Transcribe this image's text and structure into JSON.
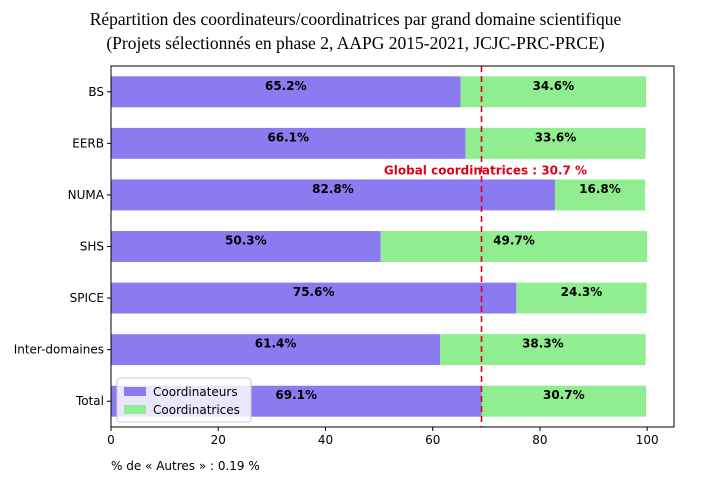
{
  "chart_data": {
    "type": "bar",
    "orientation": "horizontal",
    "stacked": true,
    "title": "Répartition des coordinateurs/coordinatrices par grand domaine scientifique",
    "subtitle": "(Projets sélectionnés en phase 2, AAPG 2015-2021, JCJC-PRC-PRCE)",
    "categories": [
      "BS",
      "EERB",
      "NUMA",
      "SHS",
      "SPICE",
      "Inter-domaines",
      "Total"
    ],
    "series": [
      {
        "name": "Coordinateurs",
        "color": "#8B7BF0",
        "values": [
          65.2,
          66.1,
          82.8,
          50.3,
          75.6,
          61.4,
          69.1
        ],
        "labels": [
          "65.2%",
          "66.1%",
          "82.8%",
          "50.3%",
          "75.6%",
          "61.4%",
          "69.1%"
        ]
      },
      {
        "name": "Coordinatrices",
        "color": "#90EE90",
        "values": [
          34.6,
          33.6,
          16.8,
          49.7,
          24.3,
          38.3,
          30.7
        ],
        "labels": [
          "34.6%",
          "33.6%",
          "16.8%",
          "49.7%",
          "24.3%",
          "38.3%",
          "30.7%"
        ]
      }
    ],
    "xlim": [
      0,
      105
    ],
    "xticks": [
      0,
      20,
      40,
      60,
      80,
      100
    ],
    "xtick_labels": [
      "0",
      "20",
      "40",
      "60",
      "80",
      "100"
    ],
    "xlabel": "",
    "ylabel": "",
    "grid": false,
    "legend_position": "bottom-left",
    "reference_line": {
      "x": 69.1,
      "color": "#E0001B",
      "style": "dashed",
      "label": "Global coordinatrices : 30.7 %"
    },
    "footnote": "% de « Autres » : 0.19 %"
  }
}
